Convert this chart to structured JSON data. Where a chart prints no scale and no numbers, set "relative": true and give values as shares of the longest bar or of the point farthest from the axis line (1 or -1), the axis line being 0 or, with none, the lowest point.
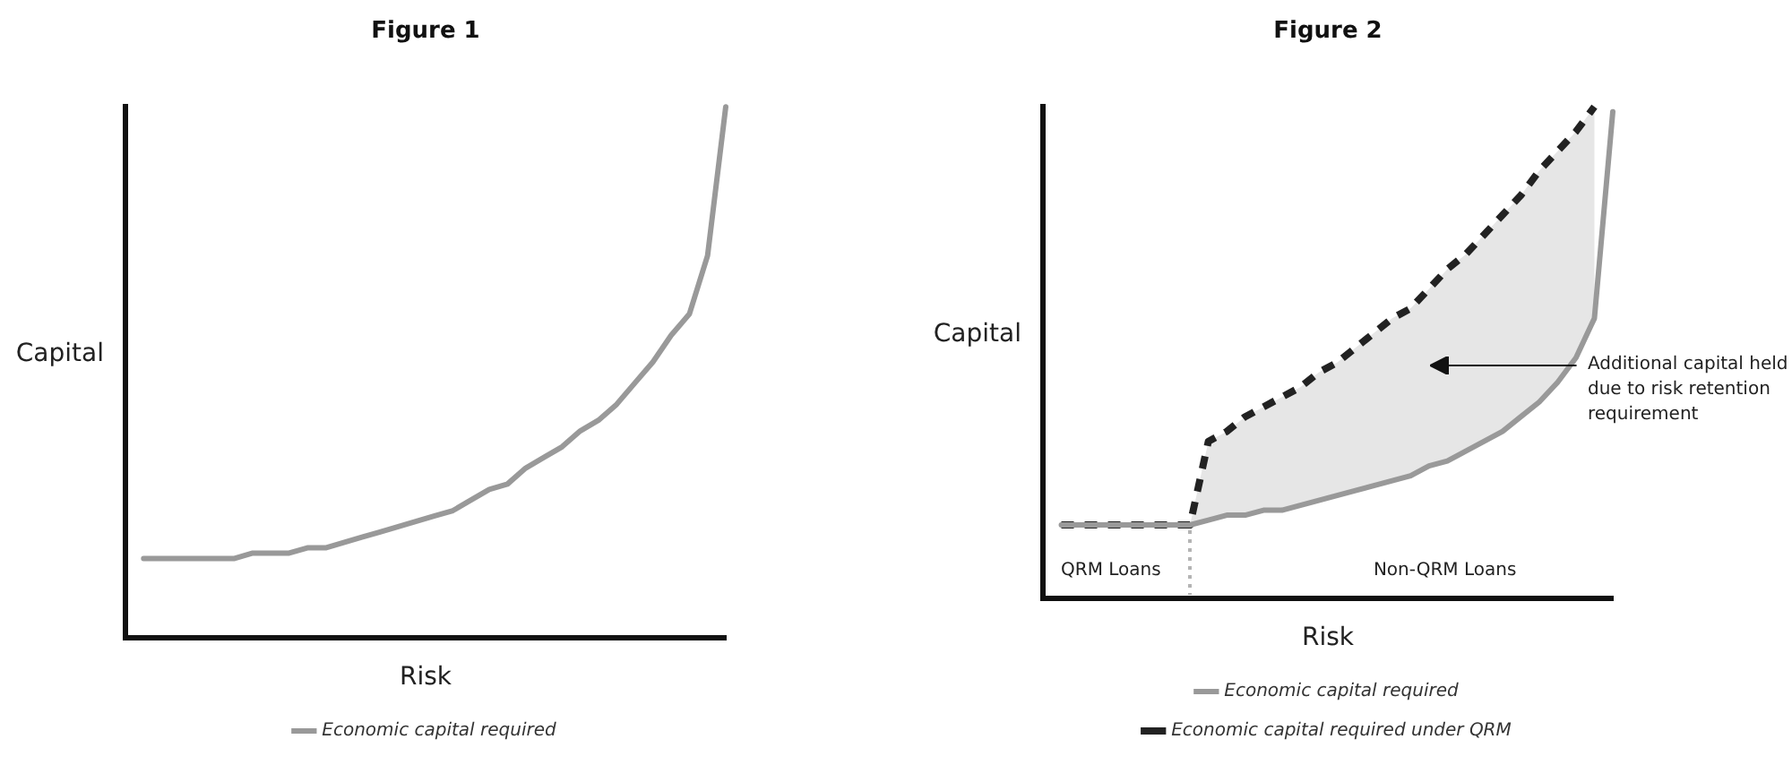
{
  "chart_data": [
    {
      "type": "line",
      "title": "Figure 1",
      "xlabel": "Risk",
      "ylabel": "Capital",
      "relative": true,
      "grid": false,
      "legend": "bottom",
      "marker": "none",
      "line_style": "solid",
      "categories": [
        null,
        null,
        null,
        null,
        null,
        null,
        null,
        null,
        null,
        null,
        null,
        null,
        null,
        null,
        null,
        null,
        null,
        null,
        null,
        null,
        null,
        null,
        null,
        null,
        null,
        null,
        null,
        null,
        null,
        null,
        null,
        null,
        null,
        null
      ],
      "series": [
        {
          "name": "Economic capital required",
          "color": "#999999",
          "values": [
            null,
            0.15,
            0.15,
            0.15,
            0.15,
            0.15,
            0.15,
            0.16,
            0.16,
            0.16,
            0.17,
            0.17,
            0.18,
            0.19,
            0.2,
            0.21,
            0.22,
            0.23,
            0.24,
            0.26,
            0.28,
            0.29,
            0.32,
            0.34,
            0.36,
            0.39,
            0.41,
            0.44,
            0.48,
            0.52,
            0.57,
            0.61,
            0.72,
            1
          ]
        }
      ]
    },
    {
      "type": "line",
      "title": "Figure 2",
      "xlabel": "Risk",
      "ylabel": "Capital",
      "relative": true,
      "grid": false,
      "legend": "bottom",
      "marker": "none",
      "annotations": [
        "QRM Loans",
        "Non-QRM Loans",
        "Additional capital held due to risk retention requirement"
      ],
      "categories": [
        null,
        null,
        null,
        null,
        null,
        null,
        null,
        null,
        null,
        null,
        null,
        null,
        null,
        null,
        null,
        null,
        null,
        null,
        null,
        null,
        null,
        null,
        null,
        null,
        null,
        null,
        null,
        null,
        null,
        null,
        null,
        null
      ],
      "series": [
        {
          "name": "Economic capital required",
          "color": "#999999",
          "line_style": "solid",
          "values": [
            null,
            0.15,
            0.15,
            0.15,
            0.15,
            0.15,
            0.15,
            0.15,
            0.15,
            0.16,
            0.17,
            0.17,
            0.18,
            0.18,
            0.19,
            0.2,
            0.21,
            0.22,
            0.23,
            0.24,
            0.25,
            0.27,
            0.28,
            0.3,
            0.32,
            0.34,
            0.37,
            0.4,
            0.44,
            0.49,
            0.57,
            0.99
          ]
        },
        {
          "name": "Economic capital required under QRM",
          "color": "#222222",
          "line_style": "dashed",
          "values": [
            null,
            0.15,
            0.15,
            0.15,
            0.15,
            0.15,
            0.15,
            0.15,
            0.15,
            0.32,
            0.34,
            0.37,
            0.39,
            0.41,
            0.43,
            0.46,
            0.48,
            0.51,
            0.54,
            0.57,
            0.59,
            0.63,
            0.67,
            0.7,
            0.74,
            0.78,
            0.82,
            0.87,
            0.91,
            0.95,
            1,
            null
          ],
          "lower": [
            null,
            null,
            null,
            null,
            null,
            null,
            null,
            null,
            0.15,
            0.16,
            0.17,
            0.17,
            0.18,
            0.18,
            0.19,
            0.2,
            0.21,
            0.22,
            0.23,
            0.24,
            0.25,
            0.27,
            0.28,
            0.3,
            0.32,
            0.34,
            0.37,
            0.4,
            0.44,
            0.49,
            0.57,
            null
          ],
          "upper": [
            null,
            null,
            null,
            null,
            null,
            null,
            null,
            null,
            0.15,
            0.32,
            0.34,
            0.37,
            0.39,
            0.41,
            0.43,
            0.46,
            0.48,
            0.51,
            0.54,
            0.57,
            0.59,
            0.63,
            0.67,
            0.7,
            0.74,
            0.78,
            0.82,
            0.87,
            0.91,
            0.95,
            1,
            null
          ]
        }
      ]
    }
  ]
}
